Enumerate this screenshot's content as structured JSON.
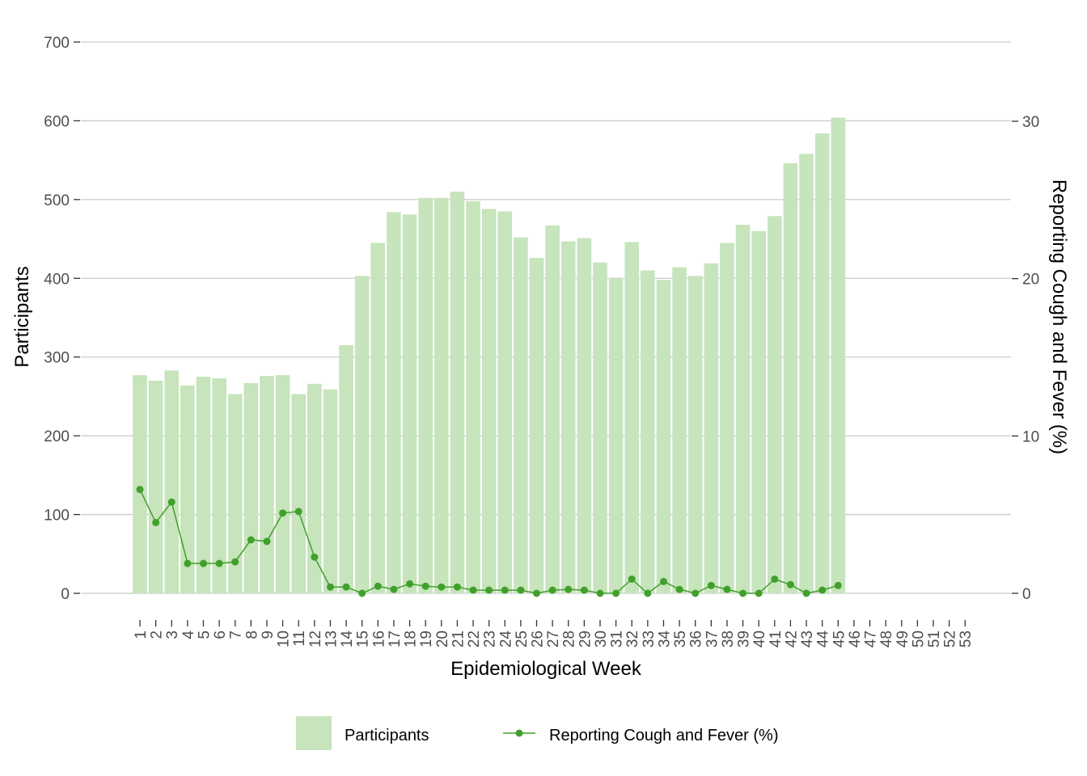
{
  "chart_data": {
    "type": "bar",
    "xlabel": "Epidemiological Week",
    "ylabel": "Participants",
    "y2label": "Reporting Cough and Fever (%)",
    "ylim": [
      -30,
      720
    ],
    "yticks": [
      0,
      100,
      200,
      300,
      400,
      500,
      600,
      700
    ],
    "y2lim": [
      0,
      35
    ],
    "y2ticks": [
      0,
      10,
      20,
      30
    ],
    "grid": "horizontal",
    "legend_position": "bottom",
    "categories": [
      "1",
      "2",
      "3",
      "4",
      "5",
      "6",
      "7",
      "8",
      "9",
      "10",
      "11",
      "12",
      "13",
      "14",
      "15",
      "16",
      "17",
      "18",
      "19",
      "20",
      "21",
      "22",
      "23",
      "24",
      "25",
      "26",
      "27",
      "28",
      "29",
      "30",
      "31",
      "32",
      "33",
      "34",
      "35",
      "36",
      "37",
      "38",
      "39",
      "40",
      "41",
      "42",
      "43",
      "44",
      "45",
      "46",
      "47",
      "48",
      "49",
      "50",
      "51",
      "52",
      "53"
    ],
    "series": [
      {
        "name": "Participants",
        "kind": "bar",
        "axis": "left",
        "color": "#c7e4bc",
        "values": [
          277,
          270,
          283,
          264,
          275,
          273,
          253,
          267,
          276,
          277,
          253,
          266,
          259,
          315,
          403,
          445,
          484,
          481,
          502,
          502,
          510,
          498,
          488,
          485,
          452,
          426,
          467,
          447,
          451,
          420,
          400,
          446,
          410,
          398,
          414,
          403,
          419,
          445,
          468,
          460,
          479,
          546,
          558,
          584,
          604,
          null,
          null,
          null,
          null,
          null,
          null,
          null,
          null
        ]
      },
      {
        "name": "Reporting Cough and Fever (%)",
        "kind": "line",
        "axis": "right",
        "color": "#41a02c",
        "values": [
          6.6,
          4.5,
          5.8,
          1.9,
          1.9,
          1.9,
          2.0,
          3.4,
          3.3,
          5.1,
          5.2,
          2.3,
          0.4,
          0.4,
          0.0,
          0.45,
          0.25,
          0.6,
          0.45,
          0.4,
          0.4,
          0.2,
          0.2,
          0.2,
          0.2,
          0.0,
          0.2,
          0.25,
          0.2,
          0.0,
          0.0,
          0.9,
          0.0,
          0.75,
          0.25,
          0.0,
          0.5,
          0.25,
          0.0,
          0.0,
          0.9,
          0.55,
          0.0,
          0.2,
          0.5,
          null,
          null,
          null,
          null,
          null,
          null,
          null,
          null
        ]
      }
    ]
  }
}
